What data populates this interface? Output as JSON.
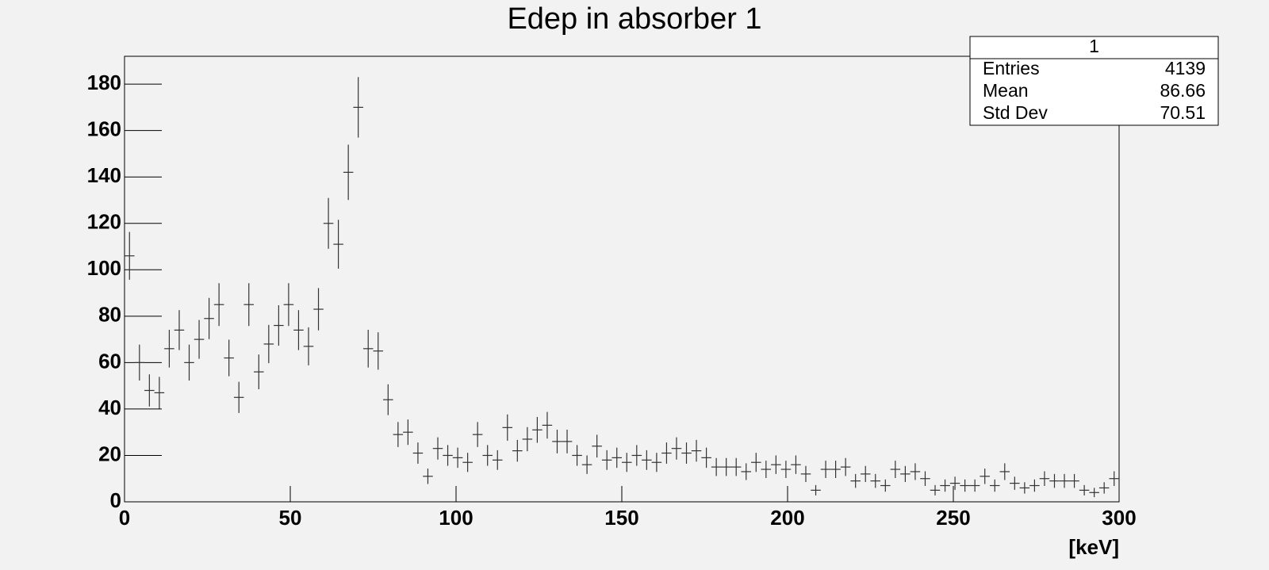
{
  "chart_data": {
    "type": "histogram",
    "title": "Edep in absorber 1",
    "xlabel": "[keV]",
    "bins": [
      0,
      3,
      6,
      9,
      12,
      15,
      18,
      21,
      24,
      27,
      30,
      33,
      36,
      39,
      42,
      45,
      48,
      51,
      54,
      57,
      60,
      63,
      66,
      69,
      72,
      75,
      78,
      81,
      84,
      87,
      90,
      93,
      96,
      99,
      102,
      105,
      108,
      111,
      114,
      117,
      120,
      123,
      126,
      129,
      132,
      135,
      138,
      141,
      144,
      147,
      150,
      153,
      156,
      159,
      162,
      165,
      168,
      171,
      174,
      177,
      180,
      183,
      186,
      189,
      192,
      195,
      198,
      201,
      204,
      207,
      210,
      213,
      216,
      219,
      222,
      225,
      228,
      231,
      234,
      237,
      240,
      243,
      246,
      249,
      252,
      255,
      258,
      261,
      264,
      267,
      270,
      273,
      276,
      279,
      282,
      285,
      288,
      291,
      294,
      297,
      300
    ],
    "values": [
      106,
      60,
      48,
      47,
      66,
      74,
      60,
      70,
      79,
      85,
      62,
      45,
      85,
      56,
      68,
      76,
      85,
      74,
      67,
      83,
      120,
      111,
      142,
      170,
      66,
      65,
      44,
      29,
      30,
      21,
      11,
      23,
      20,
      19,
      17,
      29,
      20,
      18,
      32,
      22,
      27,
      31,
      33,
      26,
      26,
      20,
      16,
      24,
      18,
      19,
      17,
      20,
      18,
      17,
      21,
      23,
      21,
      22,
      19,
      15,
      15,
      15,
      13,
      17,
      14,
      16,
      14,
      16,
      12,
      5,
      14,
      14,
      15,
      9,
      12,
      9,
      7,
      14,
      12,
      13,
      10,
      5,
      7,
      8,
      7,
      7,
      11,
      7,
      13,
      8,
      6,
      7,
      10,
      9,
      9,
      9,
      5,
      4,
      6,
      10
    ],
    "color": "#333333",
    "xlim": [
      0,
      300
    ],
    "xticks": [
      0,
      50,
      100,
      150,
      200,
      250,
      300
    ],
    "ylim": [
      0,
      192
    ],
    "yticks": [
      0,
      20,
      40,
      60,
      80,
      100,
      120,
      140,
      160,
      180
    ],
    "stats": {
      "title": "1",
      "rows": [
        {
          "label": "Entries",
          "value": 4139
        },
        {
          "label": "Mean",
          "value": 86.66
        },
        {
          "label": "Std Dev",
          "value": 70.51
        }
      ]
    }
  }
}
